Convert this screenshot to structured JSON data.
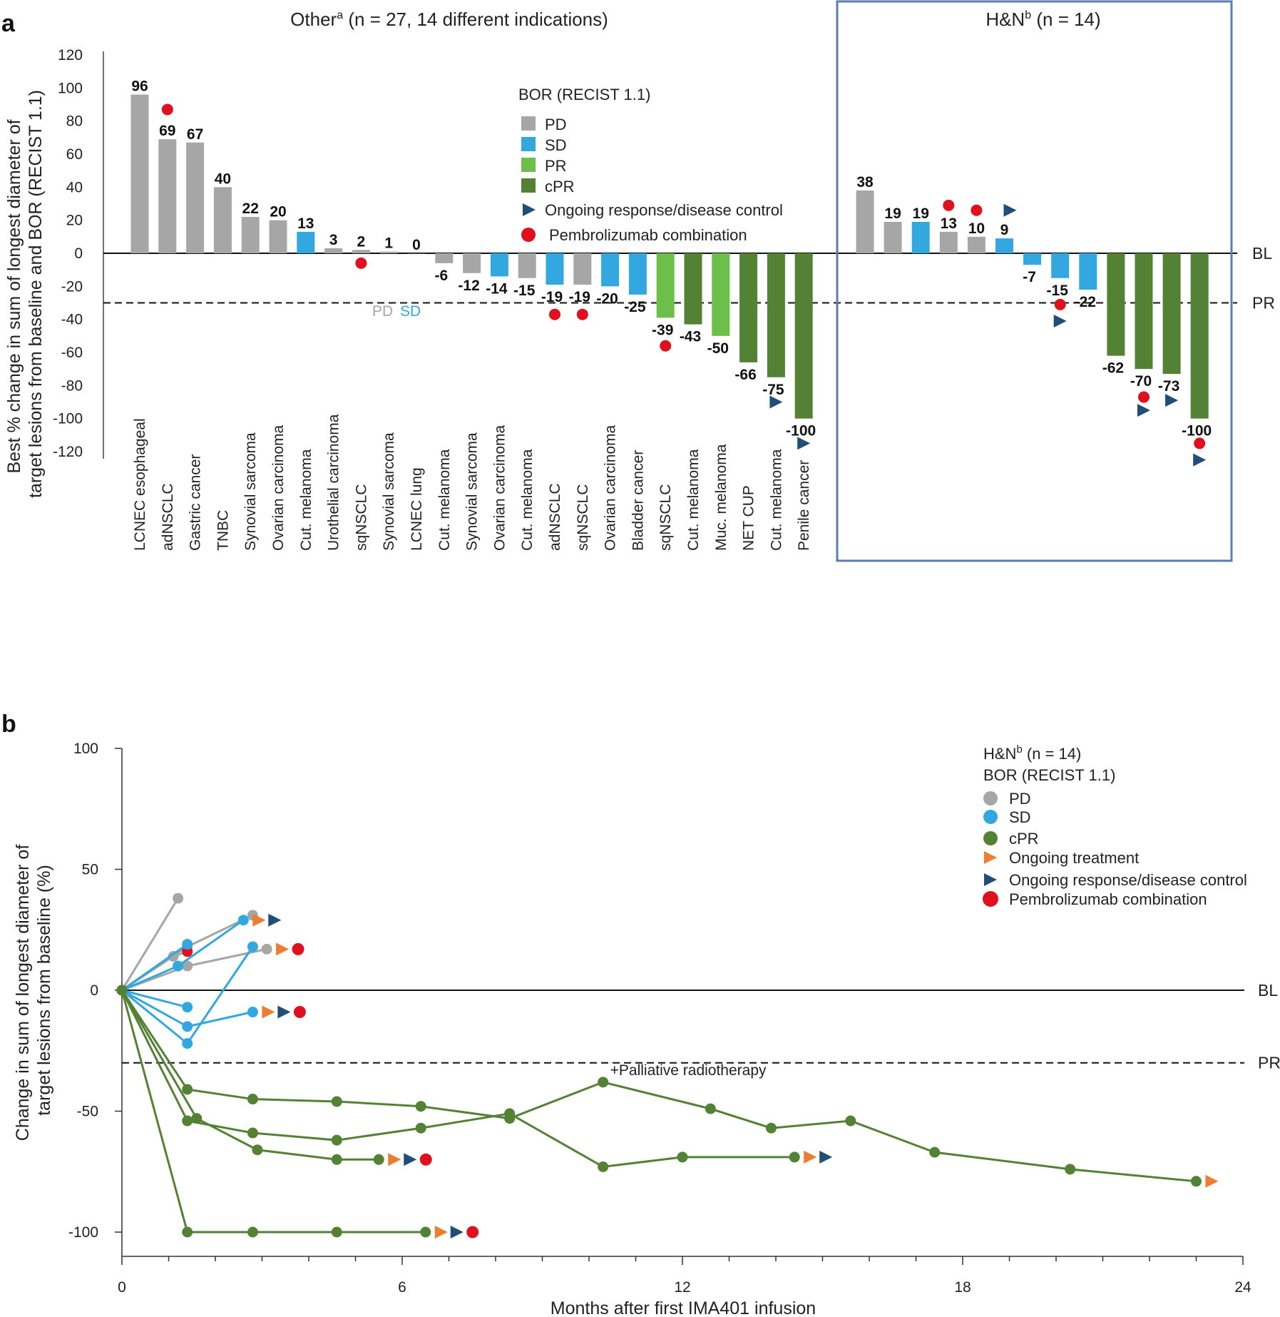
{
  "colors": {
    "PD": "#a6a6a6",
    "SD": "#33a8e0",
    "PR": "#6cc04a",
    "cPR": "#548235",
    "ongoing_response": "#1f4e79",
    "ongoing_treatment": "#ed7d31",
    "pembrolizumab": "#e0101e",
    "box": "#5b7db1"
  },
  "chart_data": [
    {
      "panel": "a",
      "type": "bar",
      "header_left": "Other",
      "header_left_sup": "a",
      "header_left_rest": " (n = 27, 14 different indications)",
      "header_right": "H&N",
      "header_right_sup": "b",
      "header_right_rest": " (n = 14)",
      "ylabel_line1": "Best % change in sum of longest diameter of",
      "ylabel_line2": "target lesions from baseline and BOR (RECIST 1.1)",
      "ylim": [
        -120,
        120
      ],
      "yticks": [
        "120",
        "100",
        "80",
        "60",
        "40",
        "20",
        "0",
        "-20",
        "-40",
        "-60",
        "-80",
        "-100",
        "-120"
      ],
      "reference_lines": [
        {
          "label": "BL",
          "value": 0,
          "style": "solid"
        },
        {
          "label": "PR",
          "value": -30,
          "style": "dashed"
        }
      ],
      "legend": {
        "title": "BOR (RECIST 1.1)",
        "items": [
          "PD",
          "SD",
          "PR",
          "cPR",
          "Ongoing response/disease control",
          "Pembrolizumab combination"
        ]
      },
      "inline_note": {
        "text1": "PD",
        "text2": "SD"
      },
      "groups": [
        {
          "name": "Other",
          "bars": [
            {
              "category": "LCNEC esophageal",
              "value": 96,
              "label": "96",
              "bor": "PD"
            },
            {
              "category": "adNSCLC",
              "value": 69,
              "label": "69",
              "bor": "PD",
              "pembro": true,
              "pembro_at": 87
            },
            {
              "category": "Gastric cancer",
              "value": 67,
              "label": "67",
              "bor": "PD"
            },
            {
              "category": "TNBC",
              "value": 40,
              "label": "40",
              "bor": "PD"
            },
            {
              "category": "Synovial sarcoma",
              "value": 22,
              "label": "22",
              "bor": "PD"
            },
            {
              "category": "Ovarian carcinoma",
              "value": 20,
              "label": "20",
              "bor": "PD"
            },
            {
              "category": "Cut. melanoma",
              "value": 13,
              "label": "13",
              "bor": "SD"
            },
            {
              "category": "Urothelial carcinoma",
              "value": 3,
              "label": "3",
              "bor": "PD"
            },
            {
              "category": "sqNSCLC",
              "value": 2,
              "label": "2",
              "bor": "PD",
              "pembro": true,
              "pembro_at": -6
            },
            {
              "category": "Synovial sarcoma",
              "value": 1,
              "label": "1",
              "bor": "PD"
            },
            {
              "category": "LCNEC lung",
              "value": 0,
              "label": "0",
              "bor": "SD"
            },
            {
              "category": "Cut. melanoma",
              "value": -6,
              "label": "-6",
              "bor": "PD"
            },
            {
              "category": "Synovial sarcoma",
              "value": -12,
              "label": "-12",
              "bor": "PD"
            },
            {
              "category": "Ovarian carcinoma",
              "value": -14,
              "label": "-14",
              "bor": "SD"
            },
            {
              "category": "Cut. melanoma",
              "value": -15,
              "label": "-15",
              "bor": "PD"
            },
            {
              "category": "adNSCLC",
              "value": -19,
              "label": "-19",
              "bor": "SD",
              "pembro": true,
              "pembro_at": -37
            },
            {
              "category": "sqNSCLC",
              "value": -19,
              "label": "-19",
              "bor": "PD",
              "pembro": true,
              "pembro_at": -37
            },
            {
              "category": "Ovarian carcinoma",
              "value": -20,
              "label": "-20",
              "bor": "SD"
            },
            {
              "category": "Bladder cancer",
              "value": -25,
              "label": "-25",
              "bor": "SD"
            },
            {
              "category": "sqNSCLC",
              "value": -39,
              "label": "-39",
              "bor": "PR",
              "pembro": true,
              "pembro_at": -56
            },
            {
              "category": "Cut. melanoma",
              "value": -43,
              "label": "-43",
              "bor": "cPR"
            },
            {
              "category": "Muc. melanoma",
              "value": -50,
              "label": "-50",
              "bor": "PR"
            },
            {
              "category": "NET CUP",
              "value": -66,
              "label": "-66",
              "bor": "cPR"
            },
            {
              "category": "Cut. melanoma",
              "value": -75,
              "label": "-75",
              "bor": "cPR",
              "ongoing_at": -90
            },
            {
              "category": "Penile cancer",
              "value": -100,
              "label": "-100",
              "bor": "cPR",
              "ongoing_at": -115
            }
          ]
        },
        {
          "name": "H&N",
          "bars": [
            {
              "value": 38,
              "label": "38",
              "bor": "PD"
            },
            {
              "value": 19,
              "label": "19",
              "bor": "PD"
            },
            {
              "value": 19,
              "label": "19",
              "bor": "SD"
            },
            {
              "value": 13,
              "label": "13",
              "bor": "PD",
              "pembro": true,
              "pembro_at": 29
            },
            {
              "value": 10,
              "label": "10",
              "bor": "PD",
              "pembro": true,
              "pembro_at": 26
            },
            {
              "value": 9,
              "label": "9",
              "bor": "SD",
              "ongoing_at": 26
            },
            {
              "value": -7,
              "label": "-7",
              "bor": "SD"
            },
            {
              "value": -15,
              "label": "-15",
              "bor": "SD",
              "pembro": true,
              "pembro_at": -31,
              "ongoing_at": -41
            },
            {
              "value": -22,
              "label": "-22",
              "bor": "SD"
            },
            {
              "value": -62,
              "label": "-62",
              "bor": "cPR"
            },
            {
              "value": -70,
              "label": "-70",
              "bor": "cPR",
              "pembro": true,
              "pembro_at": -87,
              "ongoing_at": -95
            },
            {
              "value": -73,
              "label": "-73",
              "bor": "cPR",
              "ongoing_at": -89
            },
            {
              "value": -100,
              "label": "-100",
              "bor": "cPR",
              "pembro": true,
              "pembro_at": -115,
              "ongoing_at": -125
            }
          ]
        }
      ]
    },
    {
      "panel": "b",
      "type": "line",
      "xlabel": "Months after first IMA401 infusion",
      "ylabel_line1": "Change in sum of longest diameter of",
      "ylabel_line2": "target lesions from baseline (%)",
      "xlim": [
        0,
        24
      ],
      "ylim": [
        -110,
        100
      ],
      "xticks": [
        "0",
        "6",
        "12",
        "18",
        "24"
      ],
      "yticks": [
        "100",
        "50",
        "0",
        "-50",
        "-100"
      ],
      "reference_lines": [
        {
          "label": "BL",
          "value": 0,
          "style": "solid"
        },
        {
          "label": "PR",
          "value": -30,
          "style": "dashed"
        }
      ],
      "annotation": {
        "text": "+Palliative radiotherapy",
        "x": 10.3,
        "y": -36
      },
      "legend": {
        "title_main": "H&N",
        "title_sup": "b",
        "title_rest": " (n = 14)",
        "title2": "BOR (RECIST 1.1)",
        "items": [
          "PD",
          "SD",
          "cPR",
          "Ongoing treatment",
          "Ongoing response/disease control",
          "Pembrolizumab combination"
        ]
      },
      "series": [
        {
          "bor": "PD",
          "x": [
            0,
            1.2
          ],
          "y": [
            0,
            38
          ]
        },
        {
          "bor": "PD",
          "x": [
            0,
            1.4,
            2.8
          ],
          "y": [
            0,
            18,
            31
          ]
        },
        {
          "bor": "PD",
          "x": [
            0,
            1.1,
            1.4
          ],
          "y": [
            0,
            14,
            16
          ],
          "pembro": true
        },
        {
          "bor": "PD",
          "x": [
            0,
            1.4,
            3.1
          ],
          "y": [
            0,
            10,
            17
          ],
          "markers": [
            "ongoing_treatment",
            "pembrolizumab"
          ]
        },
        {
          "bor": "SD",
          "x": [
            0,
            1.4
          ],
          "y": [
            0,
            19
          ]
        },
        {
          "bor": "SD",
          "x": [
            0,
            1.2,
            2.6
          ],
          "y": [
            0,
            10,
            29
          ],
          "markers": [
            "ongoing_treatment",
            "ongoing_response"
          ]
        },
        {
          "bor": "SD",
          "x": [
            0,
            1.4,
            2.8
          ],
          "y": [
            0,
            -22,
            18
          ]
        },
        {
          "bor": "SD",
          "x": [
            0,
            1.4
          ],
          "y": [
            0,
            -7
          ]
        },
        {
          "bor": "SD",
          "x": [
            0,
            1.4,
            2.8
          ],
          "y": [
            0,
            -15,
            -9
          ],
          "markers": [
            "ongoing_treatment",
            "ongoing_response",
            "pembrolizumab"
          ]
        },
        {
          "bor": "cPR",
          "x": [
            0,
            1.4,
            2.8,
            4.6,
            6.4,
            8.3,
            10.3,
            12.6,
            13.9,
            15.6,
            17.4,
            20.3,
            23.0
          ],
          "y": [
            0,
            -41,
            -45,
            -46,
            -48,
            -53,
            -38,
            -49,
            -57,
            -54,
            -67,
            -74,
            -79
          ],
          "markers": [
            "ongoing_treatment"
          ]
        },
        {
          "bor": "cPR",
          "x": [
            0,
            1.4,
            2.8,
            4.6,
            6.4,
            8.3,
            10.3,
            12.0,
            14.4
          ],
          "y": [
            0,
            -54,
            -59,
            -62,
            -57,
            -51,
            -73,
            -69,
            -69
          ],
          "markers": [
            "ongoing_treatment",
            "ongoing_response"
          ]
        },
        {
          "bor": "cPR",
          "x": [
            0,
            1.6,
            2.9,
            4.6,
            5.5
          ],
          "y": [
            0,
            -53,
            -66,
            -70,
            -70
          ],
          "markers": [
            "ongoing_treatment",
            "ongoing_response",
            "pembrolizumab"
          ]
        },
        {
          "bor": "cPR",
          "x": [
            0,
            1.4,
            2.8,
            4.6,
            6.5
          ],
          "y": [
            0,
            -100,
            -100,
            -100,
            -100
          ],
          "markers": [
            "ongoing_treatment",
            "ongoing_response",
            "pembrolizumab"
          ]
        }
      ]
    }
  ]
}
